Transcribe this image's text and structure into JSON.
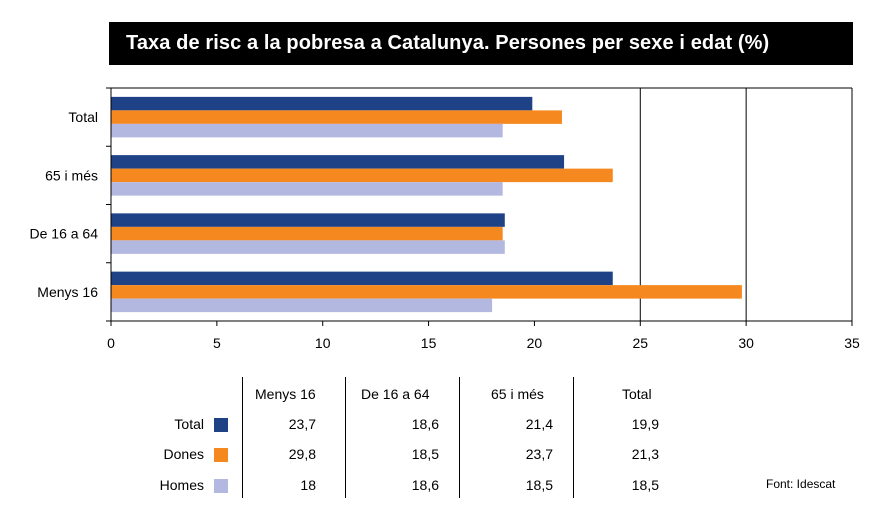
{
  "title": "Taxa de risc a la pobresa a Catalunya. Persones per sexe i edat (%)",
  "source": "Font: Idescat",
  "colors": {
    "total": "#1f4287",
    "dones": "#f5891f",
    "homes": "#b3b8e0",
    "title_bg": "#000000"
  },
  "chart_data": {
    "type": "bar",
    "orientation": "horizontal",
    "title": "Taxa de risc a la pobresa a Catalunya. Persones per sexe i edat (%)",
    "categories": [
      "Total",
      "65 i més",
      "De 16 a 64",
      "Menys 16"
    ],
    "series": [
      {
        "name": "Total",
        "values": [
          19.9,
          21.4,
          18.6,
          23.7
        ]
      },
      {
        "name": "Dones",
        "values": [
          21.3,
          23.7,
          18.5,
          29.8
        ]
      },
      {
        "name": "Homes",
        "values": [
          18.5,
          18.5,
          18.6,
          18.0
        ]
      }
    ],
    "xlim": [
      0,
      35
    ],
    "xticks": [
      "0",
      "5",
      "10",
      "15",
      "20",
      "25",
      "30",
      "35"
    ],
    "gridlines": [
      25,
      30,
      35
    ],
    "legend": "table-below"
  },
  "table": {
    "headers": [
      "Menys 16",
      "De 16 a 64",
      "65 i més",
      "Total"
    ],
    "rows": [
      {
        "label": "Total",
        "values": [
          "23,7",
          "18,6",
          "21,4",
          "19,9"
        ]
      },
      {
        "label": "Dones",
        "values": [
          "29,8",
          "18,5",
          "23,7",
          "21,3"
        ]
      },
      {
        "label": "Homes",
        "values": [
          "18",
          "18,6",
          "18,5",
          "18,5"
        ]
      }
    ]
  }
}
